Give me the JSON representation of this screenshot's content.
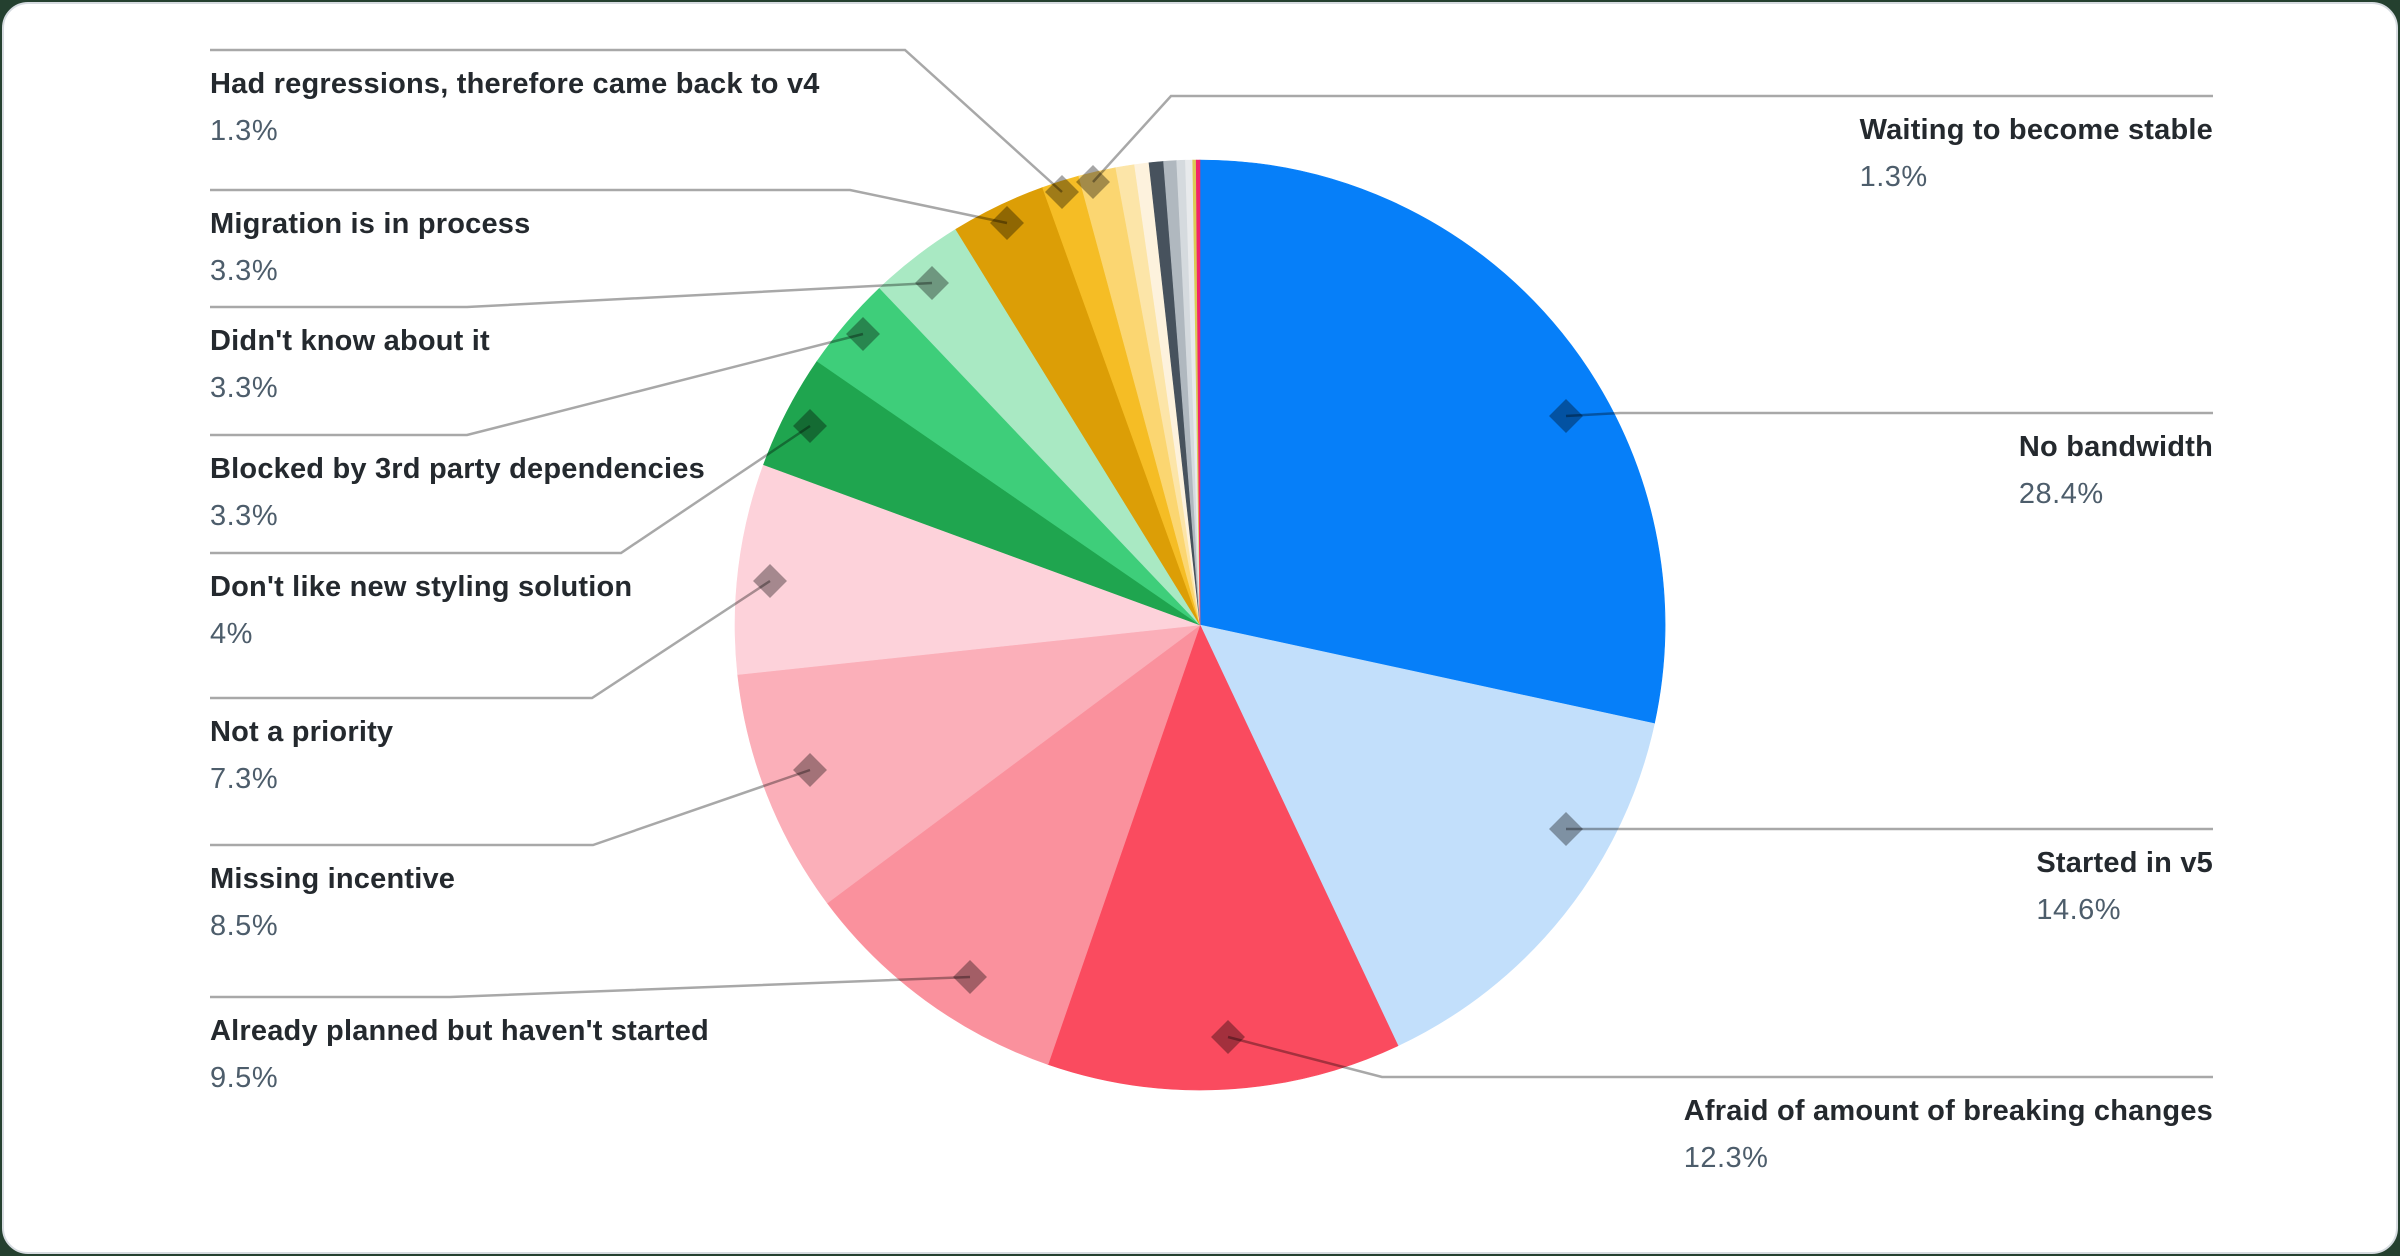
{
  "chart_data": {
    "type": "pie",
    "legend_position": "none",
    "start_angle_deg": 0,
    "direction": "clockwise",
    "colors": {
      "label_title": "#24292E",
      "label_percent": "#4D5D6B",
      "leader_line": "rgba(0,0,0,0.34)",
      "card_border": "#D6DBE0",
      "card_background": "#FFFFFF"
    },
    "segments": [
      {
        "id": "no-bandwidth",
        "label": "No bandwidth",
        "value": 28.4,
        "display_value": "28.4%",
        "color": "#067FF9",
        "labeled": true
      },
      {
        "id": "started-in-v5",
        "label": "Started in v5",
        "value": 14.6,
        "display_value": "14.6%",
        "color": "#C2DFFB",
        "labeled": true
      },
      {
        "id": "afraid-breaking-changes",
        "label": "Afraid of amount of breaking changes",
        "value": 12.3,
        "display_value": "12.3%",
        "color": "#FA4B5F",
        "labeled": true
      },
      {
        "id": "already-planned",
        "label": "Already planned but haven't started",
        "value": 9.5,
        "display_value": "9.5%",
        "color": "#FA919D",
        "labeled": true
      },
      {
        "id": "missing-incentive",
        "label": "Missing incentive",
        "value": 8.5,
        "display_value": "8.5%",
        "color": "#FBAFB9",
        "labeled": true
      },
      {
        "id": "not-a-priority",
        "label": "Not a priority",
        "value": 7.3,
        "display_value": "7.3%",
        "color": "#FDD2DA",
        "labeled": true
      },
      {
        "id": "dont-like-styling",
        "label": "Don't like new styling solution",
        "value": 4,
        "display_value": "4%",
        "color": "#1FA54F",
        "labeled": true
      },
      {
        "id": "blocked-3rd-party",
        "label": "Blocked by 3rd party dependencies",
        "value": 3.3,
        "display_value": "3.3%",
        "color": "#3ECE7A",
        "labeled": true
      },
      {
        "id": "didnt-know",
        "label": "Didn't know about it",
        "value": 3.3,
        "display_value": "3.3%",
        "color": "#A9E9C3",
        "labeled": true
      },
      {
        "id": "migration-in-process",
        "label": "Migration is in process",
        "value": 3.3,
        "display_value": "3.3%",
        "color": "#DC9E06",
        "labeled": true
      },
      {
        "id": "had-regressions",
        "label": "Had regressions, therefore came back to v4",
        "value": 1.3,
        "display_value": "1.3%",
        "color": "#F5BD25",
        "labeled": true
      },
      {
        "id": "waiting-stable",
        "label": "Waiting to become stable",
        "value": 1.3,
        "display_value": "1.3%",
        "color": "#FBD671",
        "labeled": true
      },
      {
        "id": "sliver-1",
        "label": "",
        "value": 0.65,
        "display_value": "",
        "color": "#FCE5A8",
        "labeled": false
      },
      {
        "id": "sliver-2",
        "label": "",
        "value": 0.5,
        "display_value": "",
        "color": "#FDF2DD",
        "labeled": false
      },
      {
        "id": "sliver-3",
        "label": "",
        "value": 0.5,
        "display_value": "",
        "color": "#47525D",
        "labeled": false
      },
      {
        "id": "sliver-4",
        "label": "",
        "value": 0.45,
        "display_value": "",
        "color": "#B0B8BF",
        "labeled": false
      },
      {
        "id": "sliver-5",
        "label": "",
        "value": 0.3,
        "display_value": "",
        "color": "#D5DADE",
        "labeled": false
      },
      {
        "id": "sliver-6",
        "label": "",
        "value": 0.25,
        "display_value": "",
        "color": "#E8EAEC",
        "labeled": false
      },
      {
        "id": "sliver-7",
        "label": "",
        "value": 0.12,
        "display_value": "",
        "color": "#DCCB55",
        "labeled": false
      },
      {
        "id": "sliver-8",
        "label": "",
        "value": 0.13,
        "display_value": "",
        "color": "#F0256C",
        "labeled": false
      }
    ]
  }
}
